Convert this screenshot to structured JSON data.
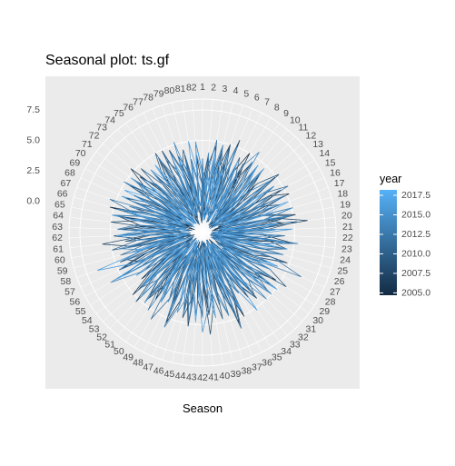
{
  "chart_data": {
    "type": "line",
    "coord": "polar",
    "title": "Seasonal plot: ts.gf",
    "xlabel": "Season",
    "ylabel": "",
    "period": 82,
    "season_labels": [
      "1",
      "2",
      "3",
      "4",
      "5",
      "6",
      "7",
      "8",
      "9",
      "10",
      "11",
      "12",
      "13",
      "14",
      "15",
      "16",
      "17",
      "18",
      "19",
      "20",
      "21",
      "22",
      "23",
      "24",
      "25",
      "26",
      "27",
      "28",
      "29",
      "30",
      "31",
      "32",
      "33",
      "34",
      "35",
      "36",
      "37",
      "38",
      "39",
      "40",
      "41",
      "42",
      "43",
      "44",
      "45",
      "46",
      "47",
      "48",
      "49",
      "50",
      "51",
      "52",
      "53",
      "54",
      "55",
      "56",
      "57",
      "58",
      "59",
      "60",
      "61",
      "62",
      "63",
      "64",
      "65",
      "66",
      "67",
      "68",
      "69",
      "70",
      "71",
      "72",
      "73",
      "74",
      "75",
      "76",
      "77",
      "78",
      "79",
      "80",
      "81",
      "82"
    ],
    "radial_ticks": [
      0,
      2.5,
      5,
      7.5
    ],
    "radial_tick_labels": [
      "0.0",
      "2.5",
      "5.0",
      "7.5"
    ],
    "ylim": [
      -2.6,
      8.4
    ],
    "grid": true,
    "legend": {
      "title": "year",
      "position": "right",
      "range": [
        2004.7,
        2018.2
      ],
      "breaks": [
        2005,
        2007.5,
        2010,
        2012.5,
        2015,
        2017.5
      ],
      "labels": [
        "2005.0",
        "2007.5",
        "2010.0",
        "2012.5",
        "2015.0",
        "2017.5"
      ],
      "low_color": "#132b43",
      "high_color": "#56b1f7"
    },
    "series": [
      {
        "year": 2005,
        "values": [
          3.2,
          -0.8,
          1.5,
          4.1,
          0.2,
          -1.6,
          2.8,
          5.0,
          0.9,
          -0.4,
          3.6,
          1.2,
          -1.9,
          4.4,
          2.1,
          0.5,
          -1.2,
          3.0,
          5.2,
          1.7,
          -0.6,
          2.4,
          4.8,
          0.1,
          -1.5,
          3.3,
          1.9,
          -0.9,
          4.6,
          2.6,
          0.3,
          -1.8,
          3.9,
          1.4,
          -0.2,
          5.1,
          2.2,
          -1.1,
          3.5,
          0.8,
          -1.7,
          4.2,
          2.9,
          0.0,
          -1.3,
          3.1,
          5.4,
          1.1,
          -0.7,
          2.7,
          4.5,
          0.4,
          -1.9,
          3.7,
          1.6,
          -0.5,
          4.9,
          2.3,
          -1.0,
          3.4,
          0.6,
          -1.6,
          4.0,
          2.0,
          -0.3,
          5.3,
          1.8,
          -1.4,
          3.8,
          0.7,
          -0.8,
          4.3,
          2.5,
          -1.2,
          3.2,
          1.0,
          -1.7,
          4.7,
          2.8,
          0.2,
          -0.9,
          3.6
        ]
      },
      {
        "year": 2006,
        "values": [
          1.1,
          3.9,
          -1.4,
          2.6,
          5.0,
          0.3,
          -0.9,
          3.4,
          1.8,
          -1.7,
          4.5,
          2.2,
          0.6,
          -1.1,
          3.7,
          5.2,
          1.0,
          -1.6,
          2.9,
          4.1,
          0.4,
          -0.8,
          3.3,
          1.5,
          -1.9,
          4.8,
          2.4,
          0.1,
          -1.3,
          3.6,
          1.9,
          -0.5,
          4.4,
          2.7,
          -1.2,
          3.0,
          5.5,
          0.8,
          -1.5,
          2.5,
          4.2,
          1.3,
          -0.7,
          3.8,
          0.2,
          -1.8,
          4.6,
          2.1,
          -0.2,
          3.5,
          1.6,
          -1.0,
          5.1,
          2.8,
          0.5,
          -1.4,
          3.2,
          4.0,
          0.9,
          -1.6,
          2.3,
          4.7,
          1.2,
          -0.6,
          3.9,
          0.0,
          -1.9,
          4.3,
          2.6,
          -0.4,
          3.1,
          5.3,
          1.7,
          -1.1,
          2.0,
          4.4,
          0.7,
          -1.3,
          3.4,
          1.4,
          -0.7,
          4.9
        ]
      },
      {
        "year": 2007,
        "values": [
          2.4,
          0.5,
          -1.2,
          3.8,
          1.6,
          5.6,
          -0.3,
          2.0,
          4.3,
          0.9,
          -1.8,
          3.1,
          1.4,
          -0.6,
          4.7,
          2.5,
          0.2,
          -1.5,
          3.6,
          6.1,
          1.1,
          -0.9,
          2.8,
          4.4,
          0.6,
          -1.7,
          3.3,
          1.9,
          -0.4,
          5.0,
          2.2,
          0.0,
          -1.3,
          3.9,
          1.5,
          -1.0,
          4.6,
          2.7,
          0.4,
          -1.8,
          3.0,
          1.2,
          -0.5,
          5.2,
          2.9,
          -1.1,
          3.5,
          0.8,
          -1.6,
          4.1,
          2.4,
          -0.2,
          3.7,
          1.0,
          -1.4,
          4.8,
          2.1,
          0.3,
          -1.9,
          3.4,
          5.7,
          1.7,
          -0.8,
          2.6,
          4.5,
          0.1,
          -1.2,
          3.2,
          1.8,
          -0.6,
          4.2,
          2.3,
          -1.5,
          3.8,
          0.5,
          -1.0,
          4.9,
          2.0,
          -0.3,
          3.3,
          1.3,
          -1.7
        ]
      },
      {
        "year": 2008,
        "values": [
          0.7,
          2.9,
          4.6,
          -0.9,
          3.3,
          1.2,
          -1.6,
          4.0,
          2.4,
          0.3,
          -1.1,
          3.5,
          5.3,
          1.6,
          -0.7,
          2.6,
          4.2,
          0.0,
          -1.8,
          3.9,
          1.8,
          -0.4,
          4.9,
          2.3,
          0.6,
          -1.5,
          3.1,
          1.0,
          -0.8,
          4.4,
          2.7,
          -1.3,
          3.7,
          0.9,
          -1.9,
          4.1,
          2.0,
          0.4,
          -1.0,
          3.4,
          5.8,
          1.5,
          -0.6,
          2.8,
          4.6,
          0.2,
          -1.4,
          3.6,
          1.9,
          -0.3,
          4.3,
          2.5,
          -1.2,
          3.0,
          0.8,
          -1.7,
          4.7,
          2.1,
          0.1,
          -1.1,
          3.8,
          1.4,
          -0.5,
          5.0,
          2.6,
          -0.9,
          3.2,
          1.1,
          -1.6,
          4.5,
          2.2,
          0.5,
          -1.3,
          3.6,
          1.7,
          -0.2,
          4.0,
          2.9,
          -1.0,
          3.4,
          0.6,
          -1.8
        ]
      },
      {
        "year": 2009,
        "values": [
          -1.0,
          3.6,
          1.4,
          0.2,
          4.9,
          2.3,
          -1.4,
          3.1,
          1.0,
          -0.6,
          4.4,
          2.8,
          0.5,
          -1.7,
          3.8,
          1.6,
          -0.2,
          5.1,
          2.2,
          -1.2,
          3.4,
          0.8,
          -1.9,
          4.5,
          2.6,
          0.1,
          -1.0,
          3.7,
          5.6,
          1.3,
          -0.5,
          2.9,
          4.1,
          0.6,
          -1.6,
          3.2,
          1.8,
          -0.8,
          4.7,
          2.4,
          -1.3,
          3.5,
          0.9,
          -1.5,
          4.2,
          2.0,
          0.3,
          -1.1,
          3.9,
          1.5,
          -0.4,
          5.3,
          2.7,
          -0.9,
          3.0,
          1.2,
          -1.8,
          4.6,
          2.1,
          0.4,
          -1.4,
          3.3,
          1.7,
          -0.7,
          4.8,
          2.5,
          -1.1,
          3.6,
          0.7,
          -1.6,
          4.3,
          2.3,
          0.0,
          -1.2,
          3.1,
          5.0,
          1.6,
          -0.3,
          2.7,
          4.4,
          0.9,
          -1.5
        ]
      },
      {
        "year": 2010,
        "values": [
          1.9,
          -1.3,
          3.4,
          2.0,
          0.6,
          -1.0,
          4.3,
          2.7,
          -0.5,
          3.8,
          1.3,
          -1.6,
          4.9,
          2.2,
          0.4,
          -1.2,
          3.5,
          1.7,
          -0.7,
          5.2,
          2.6,
          -1.4,
          3.2,
          0.8,
          -1.8,
          4.6,
          2.4,
          0.2,
          -1.1,
          3.9,
          1.5,
          -0.4,
          4.4,
          2.9,
          -1.0,
          3.3,
          5.9,
          1.1,
          -0.6,
          2.5,
          4.1,
          0.7,
          -1.7,
          3.6,
          1.9,
          -0.3,
          4.8,
          2.3,
          -1.3,
          3.0,
          1.0,
          -1.5,
          4.5,
          2.1,
          0.5,
          -0.9,
          3.7,
          1.4,
          -0.2,
          5.0,
          2.8,
          -1.1,
          3.4,
          0.9,
          -1.7,
          4.2,
          2.0,
          0.1,
          -1.4,
          3.8,
          1.6,
          -0.5,
          4.7,
          2.5,
          -0.8,
          3.1,
          1.2,
          -1.9,
          4.0,
          2.6,
          0.3,
          -1.2
        ]
      },
      {
        "year": 2011,
        "values": [
          2.8,
          1.0,
          -0.7,
          4.6,
          2.4,
          -1.5,
          3.5,
          0.6,
          -1.1,
          4.1,
          1.9,
          0.3,
          -1.8,
          3.3,
          5.4,
          1.4,
          -0.4,
          2.7,
          4.7,
          0.8,
          -1.3,
          3.9,
          2.1,
          -0.9,
          4.3,
          1.6,
          -1.7,
          3.6,
          0.9,
          -0.5,
          5.0,
          2.5,
          0.0,
          -1.4,
          3.2,
          1.8,
          -0.8,
          4.5,
          2.2,
          -1.2,
          3.7,
          1.1,
          -1.9,
          4.8,
          2.6,
          0.4,
          -1.0,
          3.4,
          5.7,
          1.5,
          -0.6,
          2.9,
          4.2,
          0.7,
          -1.6,
          3.0,
          1.3,
          -0.3,
          4.4,
          2.0,
          -1.1,
          3.8,
          0.5,
          -1.5,
          4.9,
          2.3,
          0.2,
          -0.9,
          3.6,
          1.7,
          -0.4,
          4.1,
          2.8,
          -1.3,
          3.1,
          1.0,
          -1.8,
          4.6,
          2.4,
          -0.2,
          3.5,
          1.4
        ]
      },
      {
        "year": 2012,
        "values": [
          0.4,
          2.2,
          5.1,
          1.3,
          -1.1,
          3.6,
          1.8,
          -0.3,
          4.5,
          2.6,
          0.1,
          -1.6,
          3.4,
          1.5,
          -0.8,
          4.8,
          2.3,
          -1.2,
          3.9,
          0.7,
          -1.8,
          4.2,
          2.0,
          0.5,
          -1.0,
          3.7,
          6.3,
          1.6,
          -0.6,
          2.8,
          4.6,
          0.3,
          -1.5,
          3.1,
          1.2,
          -0.4,
          4.9,
          2.5,
          -1.3,
          3.5,
          0.9,
          -1.9,
          4.3,
          2.1,
          0.2,
          -1.1,
          3.8,
          1.7,
          -0.7,
          5.2,
          2.7,
          -0.9,
          3.2,
          1.0,
          -1.4,
          4.7,
          2.4,
          0.6,
          -1.7,
          3.6,
          1.4,
          -0.2,
          4.4,
          2.9,
          -1.0,
          3.0,
          5.5,
          1.1,
          -0.5,
          2.6,
          4.1,
          0.8,
          -1.6,
          3.3,
          1.9,
          -0.3,
          4.6,
          2.2,
          -1.2,
          3.9,
          0.5,
          -1.5
        ]
      },
      {
        "year": 2013,
        "values": [
          3.5,
          -0.4,
          2.0,
          4.8,
          0.9,
          -1.7,
          3.1,
          1.6,
          -0.5,
          4.3,
          2.7,
          -1.2,
          3.8,
          1.1,
          -1.5,
          4.6,
          2.4,
          0.3,
          -0.9,
          3.6,
          1.9,
          -0.2,
          5.3,
          2.1,
          -1.3,
          3.3,
          0.7,
          -1.8,
          4.1,
          2.6,
          0.0,
          -1.0,
          3.9,
          1.4,
          -0.6,
          4.7,
          2.3,
          -1.4,
          3.4,
          0.8,
          -1.6,
          4.4,
          2.0,
          0.4,
          -1.1,
          3.7,
          5.8,
          1.5,
          -0.7,
          2.5,
          4.0,
          0.6,
          -1.9,
          3.2,
          1.8,
          -0.3,
          4.9,
          2.8,
          -1.0,
          3.5,
          1.2,
          -1.5,
          4.2,
          2.4,
          0.1,
          -1.2,
          3.8,
          1.6,
          -0.5,
          5.1,
          2.2,
          -0.8,
          3.0,
          0.9,
          -1.7,
          4.5,
          2.6,
          0.2,
          -1.3,
          3.6,
          1.3,
          -0.4
        ]
      },
      {
        "year": 2014,
        "values": [
          1.6,
          4.0,
          -1.5,
          2.9,
          1.1,
          0.0,
          -1.2,
          3.7,
          5.5,
          1.7,
          -0.6,
          2.4,
          4.5,
          0.5,
          -1.9,
          3.2,
          1.4,
          -0.3,
          4.8,
          2.6,
          -1.1,
          3.5,
          0.9,
          -1.6,
          4.2,
          2.2,
          0.3,
          -0.9,
          3.9,
          1.8,
          -0.5,
          5.0,
          2.4,
          -1.3,
          3.1,
          1.0,
          -1.7,
          4.6,
          2.8,
          0.1,
          -1.0,
          3.6,
          1.5,
          -0.4,
          4.3,
          2.0,
          -1.4,
          3.8,
          0.7,
          -1.8,
          4.9,
          2.5,
          0.4,
          -1.2,
          3.3,
          6.0,
          1.3,
          -0.7,
          2.7,
          4.4,
          0.8,
          -1.5,
          3.0,
          1.9,
          -0.2,
          4.7,
          2.3,
          -1.0,
          3.7,
          1.2,
          -1.6,
          4.1,
          2.6,
          0.0,
          -1.3,
          3.4,
          1.6,
          -0.6,
          5.2,
          2.1,
          -0.9,
          3.8
        ]
      },
      {
        "year": 2015,
        "values": [
          2.1,
          0.8,
          3.8,
          -1.1,
          4.4,
          1.5,
          -0.5,
          3.0,
          2.3,
          -1.8,
          4.7,
          1.0,
          0.2,
          -1.3,
          3.5,
          1.8,
          -0.7,
          5.1,
          2.5,
          -1.0,
          3.3,
          0.6,
          -1.6,
          4.5,
          2.1,
          0.4,
          -1.2,
          3.8,
          1.3,
          -0.4,
          4.9,
          2.7,
          -1.4,
          3.2,
          0.9,
          -1.9,
          4.1,
          2.3,
          0.1,
          -0.8,
          3.6,
          5.6,
          1.6,
          -0.6,
          2.8,
          4.3,
          0.7,
          -1.5,
          3.4,
          1.9,
          -0.3,
          4.6,
          2.2,
          -1.1,
          3.9,
          1.1,
          -1.7,
          4.2,
          2.6,
          0.3,
          -1.0,
          3.5,
          1.4,
          -0.5,
          5.0,
          2.4,
          -1.3,
          3.1,
          0.8,
          -1.8,
          4.8,
          2.0,
          0.5,
          -1.1,
          3.7,
          1.7,
          -0.2,
          4.4,
          2.9,
          -0.9,
          3.0,
          1.2
        ]
      },
      {
        "year": 2016,
        "values": [
          -0.5,
          2.6,
          0.9,
          3.6,
          1.9,
          4.9,
          -1.4,
          2.5,
          0.4,
          -0.8,
          3.9,
          2.1,
          -1.6,
          4.4,
          1.2,
          0.6,
          -1.0,
          3.4,
          2.7,
          -0.4,
          4.8,
          1.5,
          -1.3,
          3.7,
          0.8,
          -1.9,
          4.2,
          2.3,
          0.0,
          -1.1,
          3.5,
          1.6,
          -0.6,
          5.2,
          2.8,
          -1.2,
          3.1,
          1.0,
          -1.7,
          4.5,
          2.0,
          0.5,
          -0.9,
          3.8,
          1.4,
          -0.3,
          4.6,
          2.4,
          -1.5,
          3.3,
          0.7,
          -1.8,
          4.0,
          2.2,
          0.2,
          -1.0,
          3.6,
          6.6,
          1.8,
          -0.7,
          2.9,
          4.3,
          0.9,
          -1.4,
          3.2,
          1.3,
          -0.5,
          4.7,
          2.5,
          -1.2,
          3.9,
          1.1,
          -1.6,
          4.1,
          2.6,
          0.3,
          -0.8,
          3.5,
          1.7,
          -0.4,
          5.0,
          2.3
        ]
      },
      {
        "year": 2017,
        "values": [
          1.3,
          -1.6,
          4.2,
          0.7,
          2.8,
          -0.1,
          3.9,
          1.4,
          -1.3,
          4.6,
          2.2,
          0.5,
          -0.9,
          3.3,
          1.7,
          -0.5,
          4.9,
          2.4,
          -1.2,
          3.6,
          1.1,
          -1.8,
          4.3,
          2.6,
          0.2,
          -1.0,
          3.8,
          1.5,
          -0.4,
          5.1,
          2.1,
          -1.4,
          3.2,
          0.8,
          -1.7,
          4.4,
          2.5,
          0.4,
          -1.1,
          3.5,
          1.9,
          -0.6,
          4.8,
          2.3,
          -1.3,
          3.0,
          1.0,
          -1.9,
          4.1,
          2.7,
          0.1,
          -0.8,
          3.7,
          1.6,
          -0.3,
          5.4,
          2.0,
          -1.0,
          3.4,
          0.9,
          -1.5,
          4.5,
          2.4,
          0.6,
          -1.2,
          3.9,
          1.2,
          -0.7,
          4.7,
          2.8,
          -0.9,
          3.1,
          1.4,
          -1.6,
          4.2,
          2.2,
          0.3,
          -1.1,
          3.6,
          1.8,
          -0.2,
          4.9
        ]
      },
      {
        "year": 2018,
        "values": [
          2.5,
          1.2,
          -0.9,
          3.4,
          2.0,
          -1.5
        ]
      }
    ]
  }
}
